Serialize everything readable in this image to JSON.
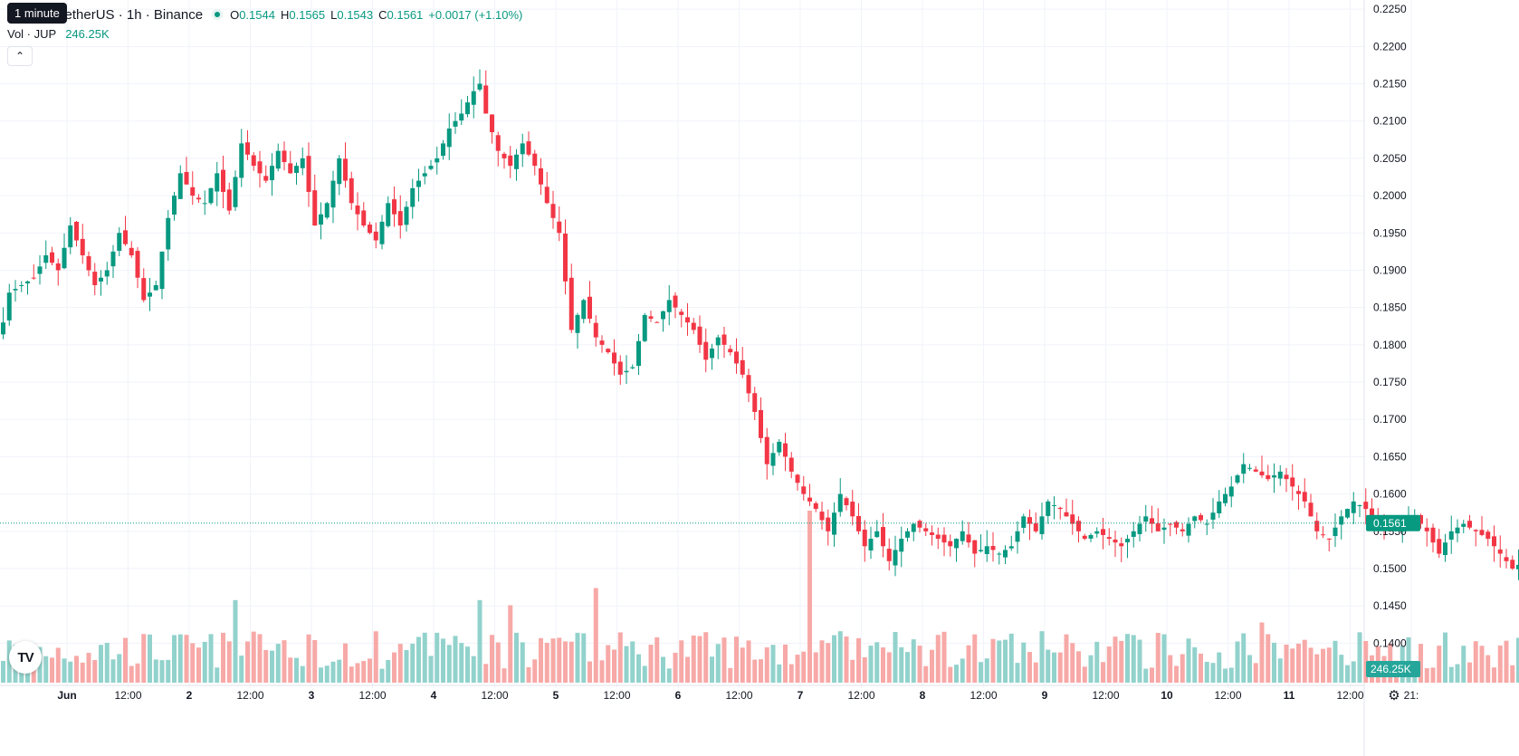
{
  "header": {
    "symbol_text": "TetherUS · 1h · Binance",
    "tooltip": "1 minute",
    "ohlc": {
      "o_label": "O",
      "o_value": "0.1544",
      "h_label": "H",
      "h_value": "0.1565",
      "l_label": "L",
      "l_value": "0.1543",
      "c_label": "C",
      "c_value": "0.1561"
    },
    "change": "+0.0017 (+1.10%)",
    "volume_label": "Vol · JUP",
    "volume_value": "246.25K",
    "collapse_icon": "chevron-up-icon"
  },
  "price_axis": {
    "ticks": [
      "0.2250",
      "0.2200",
      "0.2150",
      "0.2100",
      "0.2050",
      "0.2000",
      "0.1950",
      "0.1900",
      "0.1850",
      "0.1800",
      "0.1750",
      "0.1700",
      "0.1650",
      "0.1600",
      "0.1550",
      "0.1500",
      "0.1450",
      "0.1400"
    ],
    "last_price_label": "0.1561",
    "volume_label": "246.25K"
  },
  "time_axis": {
    "labels": [
      "Jun",
      "12:00",
      "2",
      "12:00",
      "3",
      "12:00",
      "4",
      "12:00",
      "5",
      "12:00",
      "6",
      "12:00",
      "7",
      "12:00",
      "8",
      "12:00",
      "9",
      "12:00",
      "10",
      "12:00",
      "11",
      "12:00",
      "21:"
    ]
  },
  "colors": {
    "up": "#089981",
    "down": "#f23645",
    "up_volume": "#92d2cc",
    "down_volume": "#f7a9a7",
    "grid": "#f0f3fa"
  },
  "icons": {
    "logo": "tradingview-logo-icon",
    "settings": "settings-icon"
  },
  "chart_data": {
    "type": "candlestick",
    "timeframe": "1h",
    "y_range": [
      0.1375,
      0.2255
    ],
    "last_close": 0.1561,
    "anchors": [
      [
        0,
        0.183
      ],
      [
        1,
        0.187
      ],
      [
        3,
        0.188
      ],
      [
        5,
        0.189
      ],
      [
        7,
        0.192
      ],
      [
        9,
        0.19
      ],
      [
        11,
        0.196
      ],
      [
        13,
        0.192
      ],
      [
        15,
        0.188
      ],
      [
        17,
        0.19
      ],
      [
        19,
        0.195
      ],
      [
        21,
        0.192
      ],
      [
        23,
        0.186
      ],
      [
        25,
        0.188
      ],
      [
        27,
        0.197
      ],
      [
        29,
        0.203
      ],
      [
        31,
        0.2
      ],
      [
        33,
        0.199
      ],
      [
        35,
        0.203
      ],
      [
        37,
        0.198
      ],
      [
        39,
        0.207
      ],
      [
        41,
        0.204
      ],
      [
        43,
        0.202
      ],
      [
        45,
        0.206
      ],
      [
        47,
        0.203
      ],
      [
        49,
        0.205
      ],
      [
        51,
        0.196
      ],
      [
        53,
        0.199
      ],
      [
        55,
        0.205
      ],
      [
        57,
        0.199
      ],
      [
        59,
        0.196
      ],
      [
        61,
        0.194
      ],
      [
        63,
        0.199
      ],
      [
        65,
        0.196
      ],
      [
        67,
        0.201
      ],
      [
        69,
        0.203
      ],
      [
        71,
        0.205
      ],
      [
        73,
        0.209
      ],
      [
        75,
        0.211
      ],
      [
        77,
        0.214
      ],
      [
        78,
        0.215
      ],
      [
        79,
        0.211
      ],
      [
        81,
        0.206
      ],
      [
        83,
        0.204
      ],
      [
        85,
        0.207
      ],
      [
        87,
        0.204
      ],
      [
        89,
        0.199
      ],
      [
        91,
        0.195
      ],
      [
        93,
        0.182
      ],
      [
        95,
        0.186
      ],
      [
        97,
        0.181
      ],
      [
        99,
        0.179
      ],
      [
        101,
        0.176
      ],
      [
        103,
        0.177
      ],
      [
        105,
        0.184
      ],
      [
        107,
        0.183
      ],
      [
        109,
        0.186
      ],
      [
        111,
        0.184
      ],
      [
        113,
        0.182
      ],
      [
        115,
        0.178
      ],
      [
        117,
        0.181
      ],
      [
        119,
        0.179
      ],
      [
        121,
        0.176
      ],
      [
        123,
        0.171
      ],
      [
        125,
        0.164
      ],
      [
        127,
        0.167
      ],
      [
        129,
        0.163
      ],
      [
        131,
        0.16
      ],
      [
        133,
        0.158
      ],
      [
        135,
        0.155
      ],
      [
        137,
        0.16
      ],
      [
        139,
        0.157
      ],
      [
        141,
        0.153
      ],
      [
        143,
        0.155
      ],
      [
        145,
        0.151
      ],
      [
        147,
        0.154
      ],
      [
        149,
        0.156
      ],
      [
        151,
        0.155
      ],
      [
        153,
        0.154
      ],
      [
        155,
        0.153
      ],
      [
        157,
        0.155
      ],
      [
        159,
        0.152
      ],
      [
        161,
        0.153
      ],
      [
        163,
        0.152
      ],
      [
        165,
        0.153
      ],
      [
        167,
        0.157
      ],
      [
        169,
        0.155
      ],
      [
        171,
        0.159
      ],
      [
        173,
        0.158
      ],
      [
        175,
        0.156
      ],
      [
        177,
        0.154
      ],
      [
        179,
        0.155
      ],
      [
        181,
        0.154
      ],
      [
        183,
        0.153
      ],
      [
        185,
        0.155
      ],
      [
        187,
        0.157
      ],
      [
        189,
        0.155
      ],
      [
        191,
        0.156
      ],
      [
        193,
        0.155
      ],
      [
        195,
        0.157
      ],
      [
        197,
        0.156
      ],
      [
        199,
        0.159
      ],
      [
        201,
        0.161
      ],
      [
        203,
        0.164
      ],
      [
        205,
        0.163
      ],
      [
        207,
        0.162
      ],
      [
        209,
        0.163
      ],
      [
        211,
        0.161
      ],
      [
        213,
        0.159
      ],
      [
        215,
        0.155
      ],
      [
        217,
        0.154
      ],
      [
        219,
        0.157
      ],
      [
        221,
        0.159
      ],
      [
        223,
        0.158
      ],
      [
        225,
        0.156
      ],
      [
        227,
        0.155
      ],
      [
        229,
        0.156
      ],
      [
        231,
        0.157
      ],
      [
        233,
        0.155
      ],
      [
        235,
        0.152
      ],
      [
        237,
        0.155
      ],
      [
        239,
        0.156
      ],
      [
        241,
        0.155
      ],
      [
        243,
        0.154
      ],
      [
        245,
        0.152
      ],
      [
        247,
        0.15
      ],
      [
        249,
        0.151
      ],
      [
        251,
        0.149
      ],
      [
        253,
        0.148
      ],
      [
        255,
        0.152
      ],
      [
        257,
        0.155
      ],
      [
        259,
        0.153
      ],
      [
        261,
        0.151
      ],
      [
        263,
        0.148
      ],
      [
        265,
        0.146
      ],
      [
        267,
        0.147
      ],
      [
        269,
        0.15
      ],
      [
        271,
        0.153
      ],
      [
        273,
        0.154
      ],
      [
        275,
        0.1545
      ],
      [
        277,
        0.1561
      ]
    ],
    "volume_range": [
      0,
      1
    ],
    "volume_spikes": [
      [
        132,
        1.0
      ],
      [
        97,
        0.55
      ],
      [
        78,
        0.48
      ],
      [
        38,
        0.48
      ],
      [
        83,
        0.45
      ],
      [
        256,
        0.38
      ],
      [
        206,
        0.35
      ]
    ]
  }
}
